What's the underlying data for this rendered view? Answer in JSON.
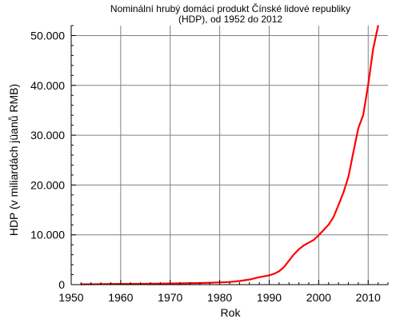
{
  "chart_data": {
    "type": "line",
    "title_lines": [
      "Nominální hrubý domácí produkt Čínské lidové republiky",
      "(HDP), od 1952 do 2012"
    ],
    "xlabel": "Rok",
    "ylabel": "HDP (v miliardách jüanů RMB)",
    "xlim": [
      1950,
      2014
    ],
    "ylim": [
      0,
      52000
    ],
    "x_ticks": [
      1950,
      1960,
      1970,
      1980,
      1990,
      2000,
      2010
    ],
    "y_ticks": [
      0,
      10000,
      20000,
      30000,
      40000,
      50000
    ],
    "y_tick_labels": [
      "0",
      "10.000",
      "20.000",
      "30.000",
      "40.000",
      "50.000"
    ],
    "grid": true,
    "colors": {
      "line": "#ff0000",
      "grid": "#808080",
      "axis": "#000000"
    },
    "series": [
      {
        "x": [
          1952,
          1955,
          1958,
          1960,
          1965,
          1970,
          1975,
          1978,
          1980,
          1982,
          1984,
          1986,
          1988,
          1990,
          1991,
          1992,
          1993,
          1994,
          1995,
          1996,
          1997,
          1998,
          1999,
          2000,
          2001,
          2002,
          2003,
          2004,
          2005,
          2006,
          2007,
          2008,
          2009,
          2010,
          2011,
          2012
        ],
        "values": [
          68,
          91,
          131,
          146,
          172,
          225,
          300,
          368,
          455,
          530,
          720,
          1020,
          1500,
          1850,
          2180,
          2690,
          3530,
          4820,
          6080,
          7110,
          7890,
          8440,
          8970,
          9920,
          10970,
          12030,
          13580,
          15990,
          18490,
          21630,
          26580,
          31400,
          34090,
          40150,
          47290,
          51950
        ]
      }
    ]
  }
}
